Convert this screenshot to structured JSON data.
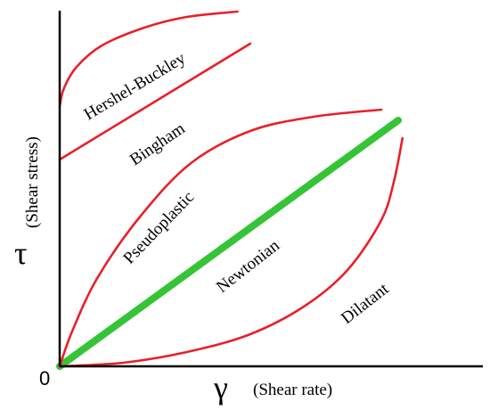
{
  "chart_data": {
    "type": "line",
    "title": "",
    "xlabel": "(Shear rate)",
    "ylabel": "(Shear stress)",
    "x_symbol": "γ",
    "y_symbol": "τ",
    "origin_label": "0",
    "grid": false,
    "legend": "none",
    "xlim": [
      0,
      1
    ],
    "ylim": [
      0,
      1
    ],
    "series": [
      {
        "name": "Hershel-Buckley",
        "color": "#e8202a",
        "points": [
          [
            0.0,
            0.73
          ],
          [
            0.01,
            0.78
          ],
          [
            0.04,
            0.84
          ],
          [
            0.1,
            0.9
          ],
          [
            0.2,
            0.95
          ],
          [
            0.3,
            0.98
          ],
          [
            0.42,
            0.995
          ]
        ]
      },
      {
        "name": "Bingham",
        "color": "#e8202a",
        "points": [
          [
            0.0,
            0.58
          ],
          [
            0.45,
            0.905
          ]
        ]
      },
      {
        "name": "Pseudoplastic",
        "color": "#e8202a",
        "points": [
          [
            0.0,
            0.0
          ],
          [
            0.03,
            0.1
          ],
          [
            0.09,
            0.25
          ],
          [
            0.19,
            0.42
          ],
          [
            0.31,
            0.57
          ],
          [
            0.45,
            0.66
          ],
          [
            0.6,
            0.7
          ],
          [
            0.76,
            0.72
          ]
        ]
      },
      {
        "name": "Newtonian",
        "color": "#35c435",
        "points": [
          [
            0.0,
            0.0
          ],
          [
            0.8,
            0.69
          ]
        ]
      },
      {
        "name": "Dilatant",
        "color": "#e8202a",
        "points": [
          [
            0.0,
            0.0
          ],
          [
            0.15,
            0.01
          ],
          [
            0.3,
            0.04
          ],
          [
            0.45,
            0.09
          ],
          [
            0.58,
            0.17
          ],
          [
            0.68,
            0.27
          ],
          [
            0.76,
            0.41
          ],
          [
            0.79,
            0.52
          ],
          [
            0.81,
            0.64
          ]
        ]
      }
    ]
  }
}
